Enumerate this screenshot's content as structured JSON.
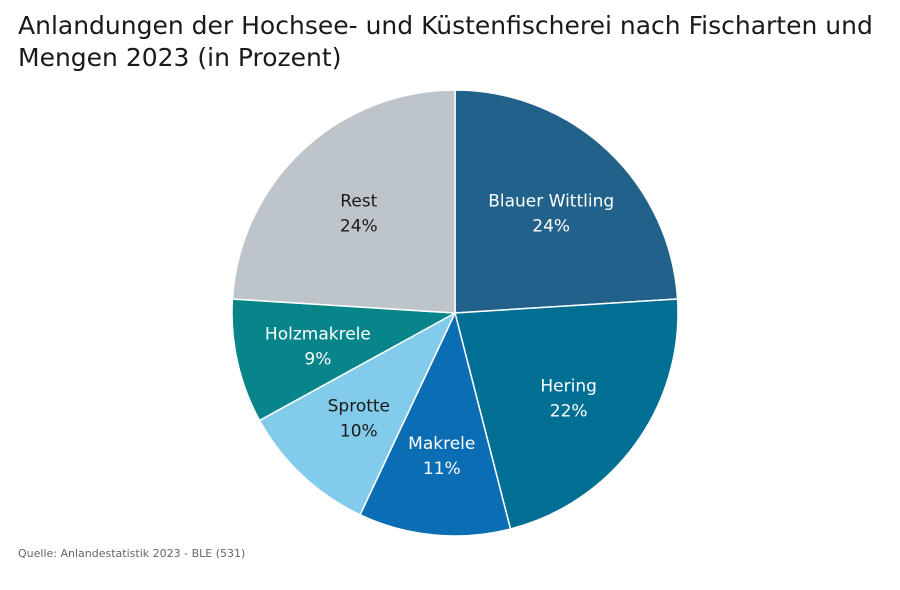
{
  "title": "Anlandungen der Hochsee- und Küstenfischerei nach Fischarten und Mengen 2023 (in Prozent)",
  "source": "Quelle: Anlandestatistik 2023 - BLE (531)",
  "chart_data": {
    "type": "pie",
    "title": "Anlandungen der Hochsee- und Küstenfischerei nach Fischarten und Mengen 2023 (in Prozent)",
    "unit": "%",
    "slices": [
      {
        "label": "Blauer Wittling",
        "value": 24,
        "display": "24%",
        "color": "#22628a",
        "text_color": "#ffffff"
      },
      {
        "label": "Hering",
        "value": 22,
        "display": "22%",
        "color": "#006f94",
        "text_color": "#ffffff"
      },
      {
        "label": "Makrele",
        "value": 11,
        "display": "11%",
        "color": "#0b6db3",
        "text_color": "#ffffff"
      },
      {
        "label": "Sprotte",
        "value": 10,
        "display": "10%",
        "color": "#82cbea",
        "text_color": "#1a1a1a"
      },
      {
        "label": "Holzmakrele",
        "value": 9,
        "display": "9%",
        "color": "#07858a",
        "text_color": "#ffffff"
      },
      {
        "label": "Rest",
        "value": 24,
        "display": "24%",
        "color": "#bdc5ca",
        "text_color": "#1a1a1a"
      }
    ]
  }
}
